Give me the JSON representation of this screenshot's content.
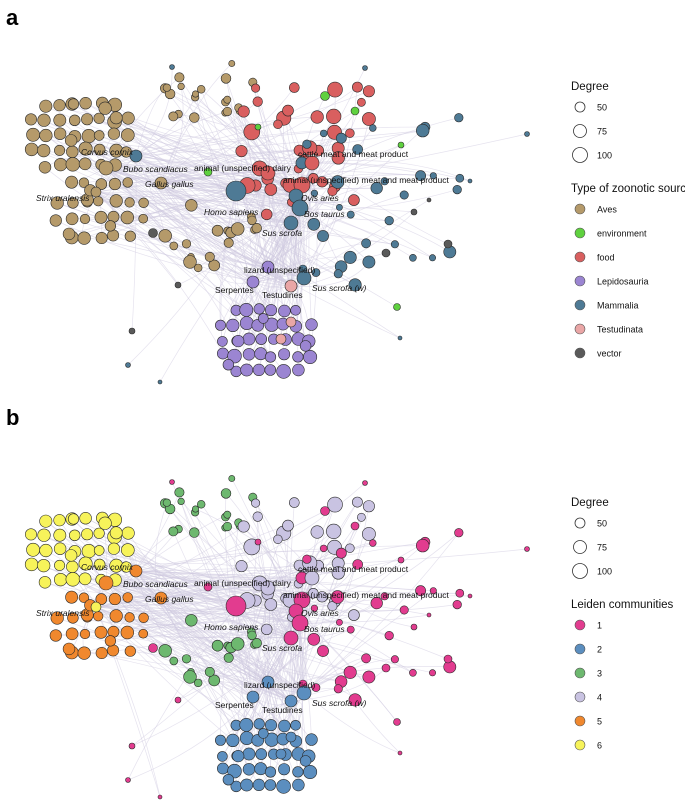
{
  "panels": [
    {
      "letter": "a",
      "labels": [
        {
          "text": "Corvus cornix",
          "italic": true
        },
        {
          "text": "Bubo scandiacus",
          "italic": true
        },
        {
          "text": "Gallus gallus",
          "italic": true
        },
        {
          "text": "Strix uralensis",
          "italic": true
        },
        {
          "text": "Homo sapiens",
          "italic": true
        },
        {
          "text": "animal (unspecified) dairy",
          "italic": false
        },
        {
          "text": "cattle meat and meat product",
          "italic": false
        },
        {
          "text": "animal (unspecified) meat and meat product",
          "italic": false
        },
        {
          "text": "Ovis aries",
          "italic": true
        },
        {
          "text": "Bos taurus",
          "italic": true
        },
        {
          "text": "Sus scrofa",
          "italic": true
        },
        {
          "text": "lizard (unspecified)",
          "italic": false
        },
        {
          "text": "Serpentes",
          "italic": false
        },
        {
          "text": "Testudines",
          "italic": false
        },
        {
          "text": "Sus scrofa (w)",
          "italic": true
        }
      ],
      "legend": {
        "degree_title": "Degree",
        "degree_values": [
          "50",
          "75",
          "100"
        ],
        "color_title": "Type of zoonotic source",
        "categories": [
          {
            "label": "Aves",
            "color": "#b59a6a"
          },
          {
            "label": "environment",
            "color": "#5fd13f"
          },
          {
            "label": "food",
            "color": "#d95f5f"
          },
          {
            "label": "Lepidosauria",
            "color": "#9b85d2"
          },
          {
            "label": "Mammalia",
            "color": "#4e7a95"
          },
          {
            "label": "Testudinata",
            "color": "#eaa6a6"
          },
          {
            "label": "vector",
            "color": "#5a5a5a"
          }
        ]
      }
    },
    {
      "letter": "b",
      "labels": [
        {
          "text": "Corvus cornix",
          "italic": true
        },
        {
          "text": "Bubo scandiacus",
          "italic": true
        },
        {
          "text": "Gallus gallus",
          "italic": true
        },
        {
          "text": "Strix uralensis",
          "italic": true
        },
        {
          "text": "Homo sapiens",
          "italic": true
        },
        {
          "text": "animal (unspecified) dairy",
          "italic": false
        },
        {
          "text": "cattle meat and meat product",
          "italic": false
        },
        {
          "text": "animal (unspecified) meat and meat product",
          "italic": false
        },
        {
          "text": "Ovis aries",
          "italic": true
        },
        {
          "text": "Bos taurus",
          "italic": true
        },
        {
          "text": "Sus scrofa",
          "italic": true
        },
        {
          "text": "lizard (unspecified)",
          "italic": false
        },
        {
          "text": "Serpentes",
          "italic": false
        },
        {
          "text": "Testudines",
          "italic": false
        },
        {
          "text": "Sus scrofa (w)",
          "italic": true
        }
      ],
      "legend": {
        "degree_title": "Degree",
        "degree_values": [
          "50",
          "75",
          "100"
        ],
        "color_title": "Leiden communities",
        "categories": [
          {
            "label": "1",
            "color": "#e23c8f"
          },
          {
            "label": "2",
            "color": "#5b8ebf"
          },
          {
            "label": "3",
            "color": "#6db86f"
          },
          {
            "label": "4",
            "color": "#c9c3e2"
          },
          {
            "label": "5",
            "color": "#f0882e"
          },
          {
            "label": "6",
            "color": "#f7f35a"
          }
        ]
      }
    }
  ]
}
